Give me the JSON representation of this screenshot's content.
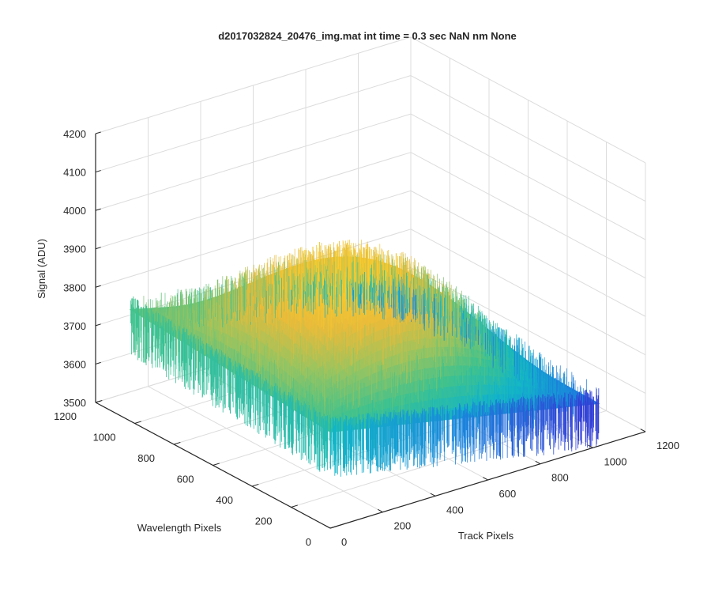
{
  "chart_data": {
    "type": "surface3d",
    "title": "d2017032824_20476_img.mat int time = 0.3 sec  NaN nm None",
    "xlabel": "Track Pixels",
    "ylabel": "Wavelength Pixels",
    "zlabel": "Signal (ADU)",
    "xlim": [
      0,
      1200
    ],
    "ylim": [
      0,
      1200
    ],
    "zlim": [
      3500,
      4200
    ],
    "x_ticks": [
      "0",
      "200",
      "400",
      "600",
      "800",
      "1000",
      "1200"
    ],
    "y_ticks": [
      "0",
      "200",
      "400",
      "600",
      "800",
      "1000",
      "1200"
    ],
    "z_ticks": [
      "3500",
      "3600",
      "3700",
      "3800",
      "3900",
      "4000",
      "4100",
      "4200"
    ],
    "grid": true,
    "surface_extent": {
      "track_pixels": [
        0,
        1024
      ],
      "wavelength_pixels": [
        0,
        1024
      ]
    },
    "approx_signal": {
      "corner_track0_wl0": 3750,
      "corner_track0_wl1024": 3790,
      "corner_track1024_wl0": 3610,
      "corner_track1024_wl1024": 3620,
      "peak_center": 3940
    },
    "colormap": [
      "#3340d6",
      "#1b86dc",
      "#12b5c8",
      "#3fc28e",
      "#9ac45f",
      "#e9bb3a",
      "#f7cd2f"
    ]
  }
}
